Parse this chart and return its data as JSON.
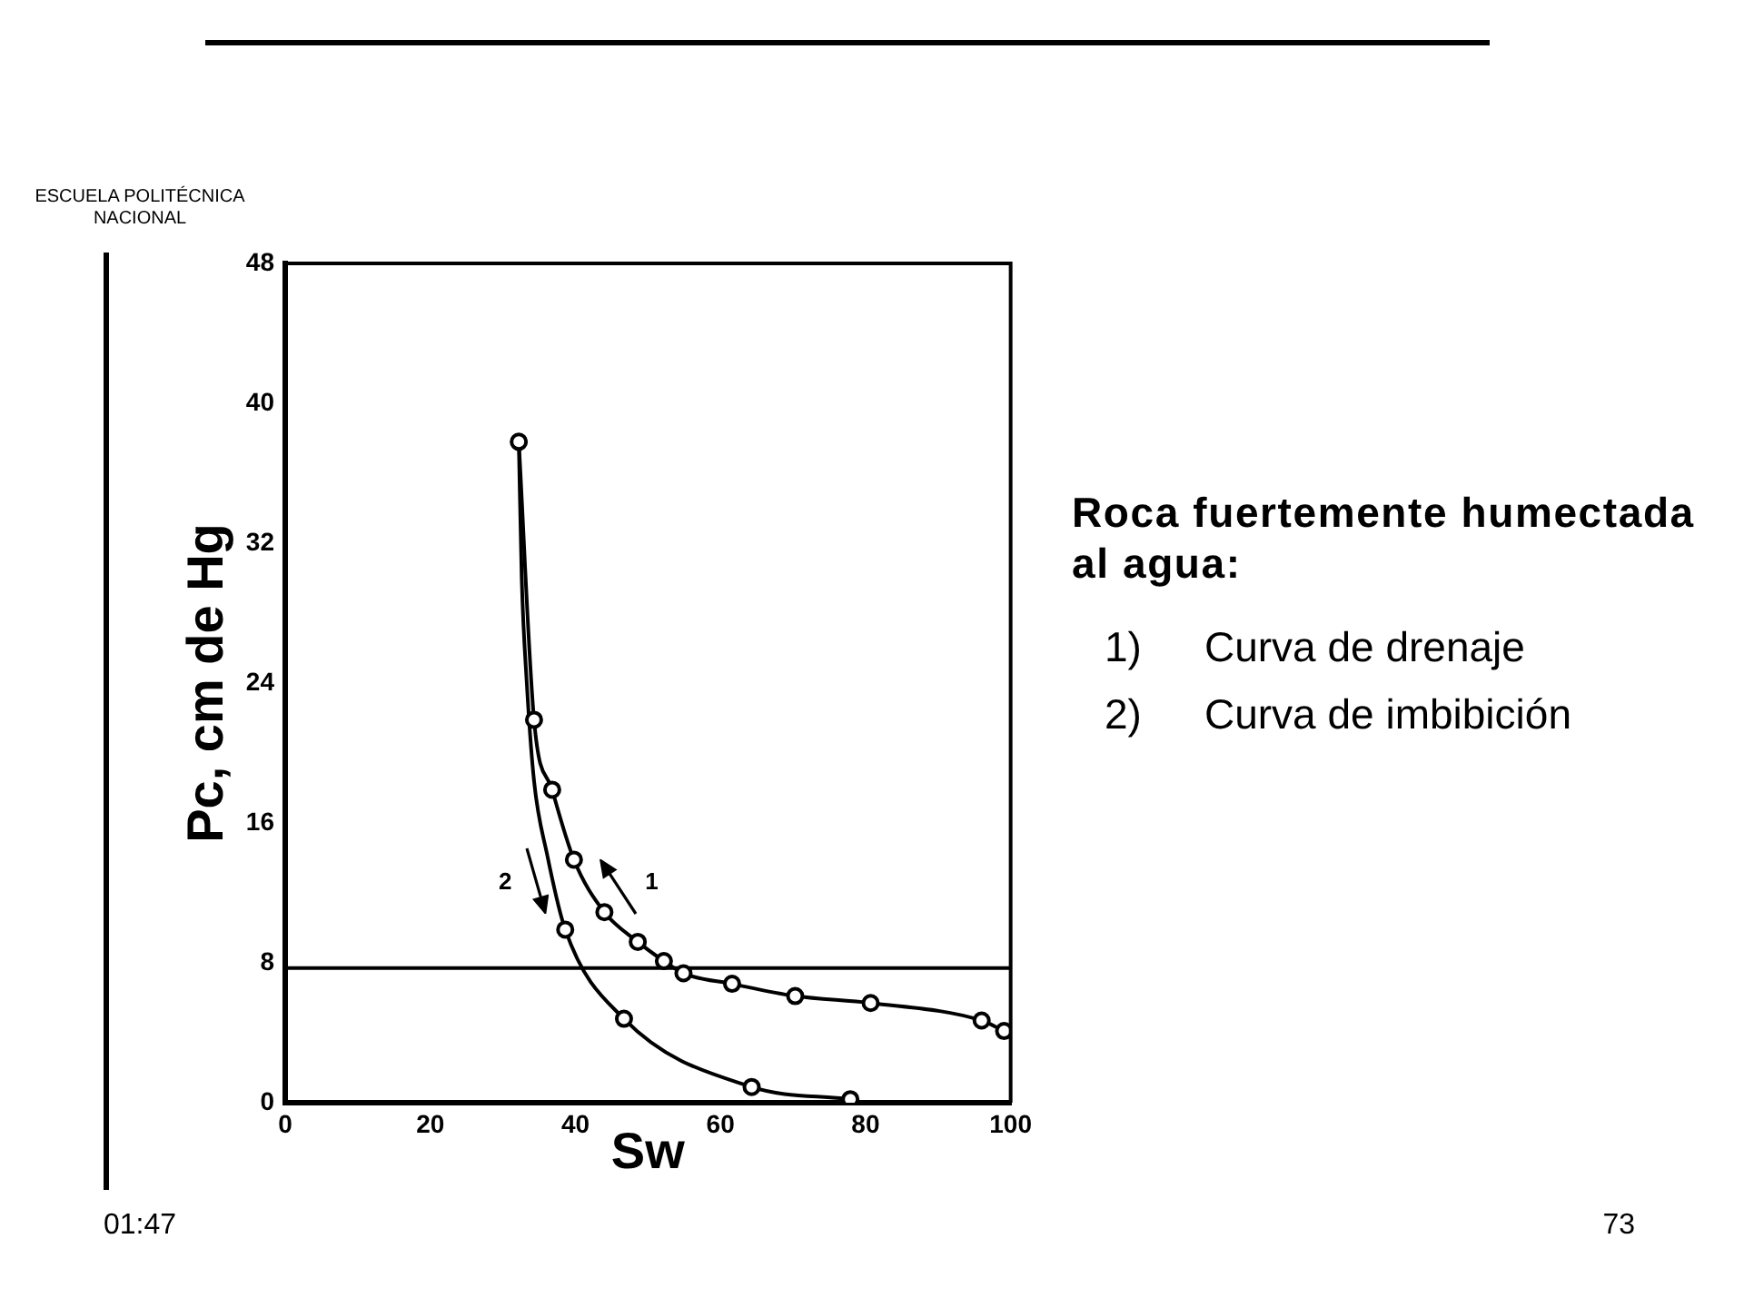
{
  "chart_data": {
    "type": "line",
    "xlabel": "Sw",
    "ylabel": "Pc, cm de Hg",
    "annotations": [
      "ESCUELA POLITÉCNICA NACIONAL",
      "Roca fuertemente humectada al agua:",
      "1) Curva de drenaje",
      "2) Curva de imbibición",
      "01:47",
      "73"
    ],
    "series": [
      {
        "name": "1",
        "color": "#000000",
        "x": [
          32.2,
          34.3,
          36.8,
          39.8,
          44.0,
          48.6,
          52.2,
          54.9,
          61.6,
          70.3,
          80.7,
          96.0,
          99.1
        ],
        "values": [
          37.8,
          21.9,
          17.9,
          13.9,
          10.9,
          9.2,
          8.1,
          7.4,
          6.8,
          6.1,
          5.7,
          4.7,
          4.1
        ]
      },
      {
        "name": "2",
        "color": "#000000",
        "marker": "none",
        "x": [
          32.2,
          32.6,
          33.3,
          34.3,
          36.1,
          38.6,
          46.7,
          64.3,
          77.9
        ],
        "values": [
          37.8,
          30,
          24,
          18.4,
          14.2,
          9.9,
          4.8,
          0.9,
          0.2
        ]
      },
      {
        "type": "scatter",
        "color": "#000000",
        "x": [
          38.6,
          46.7,
          64.3,
          77.9
        ],
        "values": [
          9.9,
          4.8,
          0.9,
          0.2
        ]
      }
    ],
    "xlim": [
      0,
      100
    ],
    "xticks": [
      0,
      20,
      40,
      60,
      80,
      100
    ],
    "ylim": [
      0,
      48
    ],
    "yticks": [
      0,
      8,
      16,
      24,
      32,
      40,
      48
    ],
    "ref_lines": [
      {
        "axis": "y",
        "value": 7.7
      }
    ],
    "marker": "circle",
    "line_style": "solid"
  }
}
